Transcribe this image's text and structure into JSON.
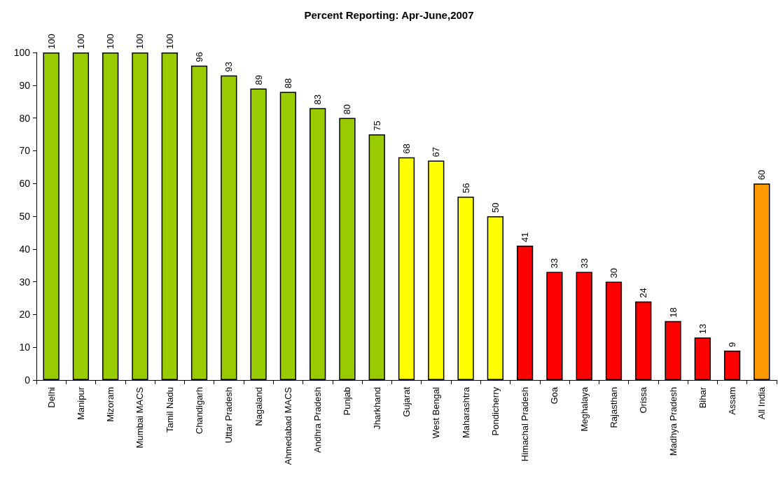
{
  "chart_data": {
    "type": "bar",
    "title": "Percent Reporting: Apr-June,2007",
    "categories": [
      "Delhi",
      "Manipur",
      "Mizoram",
      "Mumbai MACS",
      "Tamil Nadu",
      "Chandigarh",
      "Uttar Pradesh",
      "Nagaland",
      "Ahmedabad MACS",
      "Andhra Pradesh",
      "Punjab",
      "Jharkhand",
      "Gujarat",
      "West Bengal",
      "Maharashtra",
      "Pondicherry",
      "Himachal Pradesh",
      "Goa",
      "Meghalaya",
      "Rajasthan",
      "Orissa",
      "Madhya Pradesh",
      "Bihar",
      "Assam",
      "All India"
    ],
    "values": [
      100,
      100,
      100,
      100,
      100,
      96,
      93,
      89,
      88,
      83,
      80,
      75,
      68,
      67,
      56,
      50,
      41,
      33,
      33,
      30,
      24,
      18,
      13,
      9,
      60
    ],
    "colors": [
      "#99cc00",
      "#99cc00",
      "#99cc00",
      "#99cc00",
      "#99cc00",
      "#99cc00",
      "#99cc00",
      "#99cc00",
      "#99cc00",
      "#99cc00",
      "#99cc00",
      "#99cc00",
      "#ffff00",
      "#ffff00",
      "#ffff00",
      "#ffff00",
      "#ff0000",
      "#ff0000",
      "#ff0000",
      "#ff0000",
      "#ff0000",
      "#ff0000",
      "#ff0000",
      "#ff0000",
      "#ff9900"
    ],
    "ylim": [
      0,
      100
    ],
    "yticks": [
      0,
      10,
      20,
      30,
      40,
      50,
      60,
      70,
      80,
      90,
      100
    ],
    "data_labels": true,
    "grid": false
  }
}
